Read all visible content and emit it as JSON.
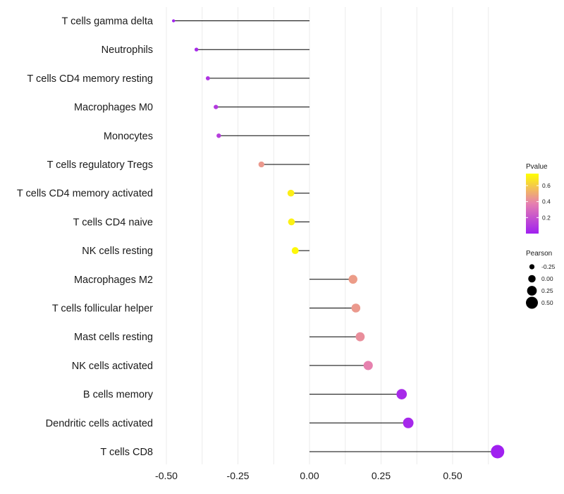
{
  "chart_data": {
    "type": "lollipop",
    "title": "",
    "xlabel": "",
    "ylabel": "",
    "xlim": [
      -0.5,
      0.67
    ],
    "xticks": [
      -0.5,
      -0.25,
      0.0,
      0.25,
      0.5
    ],
    "xtick_labels": [
      "-0.50",
      "-0.25",
      "0.00",
      "0.25",
      "0.50"
    ],
    "grid": true,
    "categories": [
      "T cells gamma delta",
      "Neutrophils",
      "T cells CD4 memory resting",
      "Macrophages M0",
      "Monocytes",
      "T cells regulatory  Tregs",
      "T cells CD4 memory activated",
      "T cells CD4 naive",
      "NK cells resting",
      "Macrophages M2",
      "T cells follicular helper",
      "Mast cells resting",
      "NK cells activated",
      "B cells memory",
      "Dendritic cells activated",
      "T cells CD8"
    ],
    "pearson": [
      -0.475,
      -0.395,
      -0.355,
      -0.327,
      -0.317,
      -0.168,
      -0.065,
      -0.063,
      -0.05,
      0.152,
      0.162,
      0.177,
      0.205,
      0.322,
      0.345,
      0.657
    ],
    "pvalue": [
      0.01,
      0.04,
      0.08,
      0.1,
      0.12,
      0.45,
      0.7,
      0.71,
      0.73,
      0.46,
      0.45,
      0.42,
      0.38,
      0.04,
      0.03,
      0.001
    ],
    "legend": {
      "color": {
        "title": "Pvalue",
        "ticks": [
          0.2,
          0.4,
          0.6
        ],
        "tick_labels": [
          "0.2",
          "0.4",
          "0.6"
        ],
        "range": [
          0.0,
          0.75
        ],
        "low_color": "#a020f0",
        "mid_color": "#e67fb0",
        "high_color": "#ffff00"
      },
      "size": {
        "title": "Pearson",
        "values": [
          -0.25,
          0.0,
          0.25,
          0.5
        ],
        "labels": [
          "-0.25",
          "0.00",
          "0.25",
          "0.50"
        ]
      },
      "position": "right"
    }
  },
  "colors": {
    "stem": "#000000",
    "grid": "#ebebeb"
  }
}
